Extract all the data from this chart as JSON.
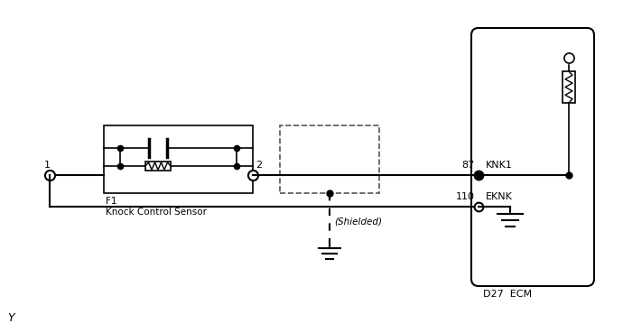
{
  "bg_color": "#ffffff",
  "line_color": "#000000",
  "dashed_color": "#555555",
  "figsize": [
    6.9,
    3.69
  ],
  "dpi": 100,
  "labels": {
    "pin1": "1",
    "pin2": "2",
    "pin87": "87",
    "pin110": "110",
    "knk1": "KNK1",
    "eknk": "EKNK",
    "f1": "F1",
    "sensor": "Knock Control Sensor",
    "shielded": "(Shielded)",
    "ecm_label": "D27  ECM",
    "y_label": "Y"
  }
}
